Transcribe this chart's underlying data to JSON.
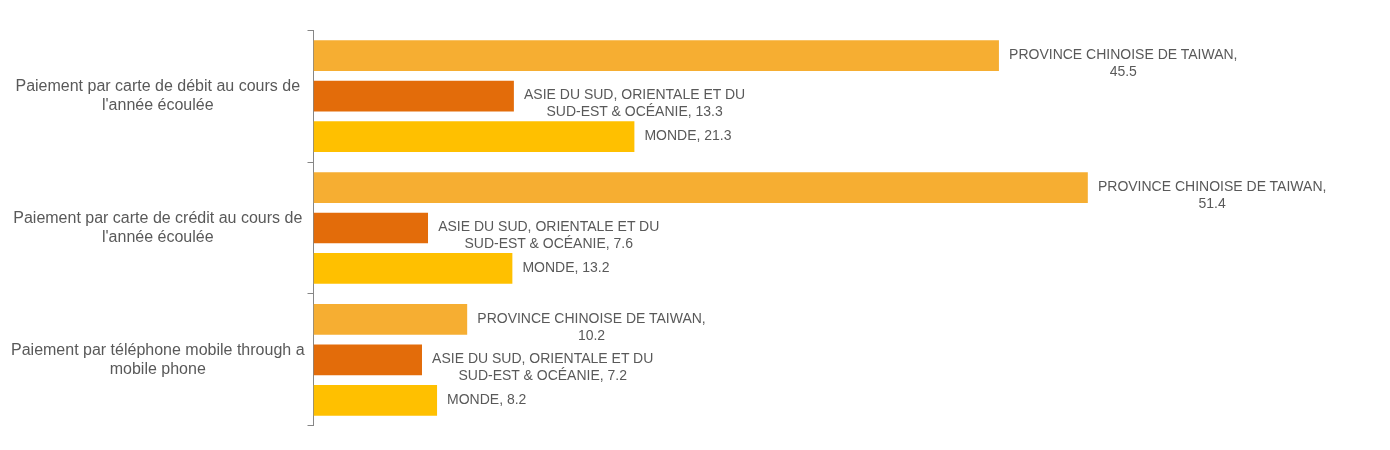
{
  "chart_data": {
    "type": "bar",
    "orientation": "horizontal",
    "legend": false,
    "tick_labels": "y",
    "categories": [
      "Paiement par carte de débit au cours de l'année écoulée",
      "Paiement par carte de crédit au cours de l'année écoulée",
      "Paiement par téléphone mobile through a mobile phone"
    ],
    "series": [
      {
        "color": "#f6ae32",
        "values": [
          45.5,
          51.4,
          10.2
        ],
        "value_labels": [
          "PROVINCE CHINOISE DE TAIWAN, 45.5",
          "PROVINCE CHINOISE DE TAIWAN, 51.4",
          "PROVINCE CHINOISE DE TAIWAN, 10.2"
        ]
      },
      {
        "color": "#e36c0a",
        "values": [
          13.3,
          7.6,
          7.2
        ],
        "value_labels": [
          "ASIE DU SUD, ORIENTALE ET DU SUD-EST & OCÉANIE, 13.3",
          "ASIE DU SUD, ORIENTALE ET DU SUD-EST & OCÉANIE, 7.6",
          "ASIE DU SUD, ORIENTALE ET DU SUD-EST & OCÉANIE, 7.2"
        ]
      },
      {
        "color": "#ffc000",
        "values": [
          21.3,
          13.2,
          8.2
        ],
        "value_labels": [
          "MONDE, 21.3",
          "MONDE, 13.2",
          "MONDE, 8.2"
        ]
      }
    ]
  }
}
